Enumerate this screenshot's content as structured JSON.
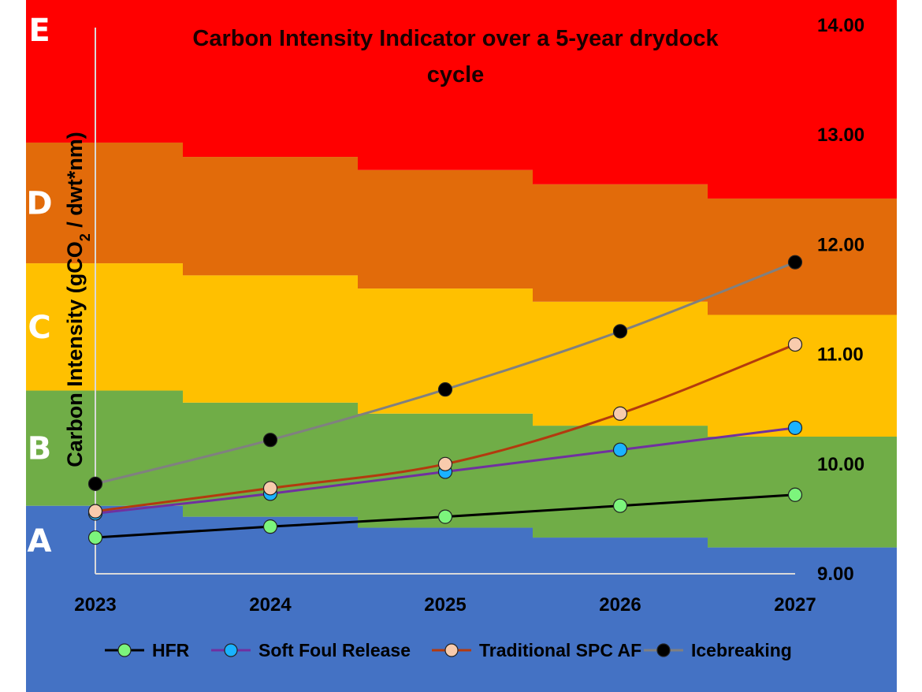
{
  "chart_data": {
    "type": "line",
    "title": "Carbon Intensity Indicator over a 5-year drydock cycle",
    "ylabel": "Carbon Intensity (gCO2 / dwt*nm)",
    "ylabel_parts": {
      "pre": "Carbon Intensity (gCO",
      "sub": "2",
      "post": " / dwt*nm)"
    },
    "xlabel": "",
    "x": [
      "2023",
      "2024",
      "2025",
      "2026",
      "2027"
    ],
    "ylim": [
      9,
      14
    ],
    "y_ticks": [
      "9.00",
      "10.00",
      "11.00",
      "12.00",
      "13.00",
      "14.00"
    ],
    "rating_bands": {
      "labels": [
        "A",
        "B",
        "C",
        "D",
        "E"
      ],
      "colors": [
        "#4472c4",
        "#70ad47",
        "#ffc000",
        "#e26b0a",
        "#ff0000"
      ],
      "upper_bounds": [
        [
          9.62,
          10.67,
          11.83,
          12.93
        ],
        [
          9.52,
          10.56,
          11.72,
          12.8
        ],
        [
          9.42,
          10.46,
          11.6,
          12.68
        ],
        [
          9.33,
          10.35,
          11.48,
          12.55
        ],
        [
          9.24,
          10.25,
          11.36,
          12.42
        ]
      ]
    },
    "series": [
      {
        "name": "HFR",
        "line_color": "#000000",
        "marker_color": "#7cf57c",
        "values": [
          9.33,
          9.43,
          9.52,
          9.62,
          9.72
        ]
      },
      {
        "name": "Soft Foul Release",
        "line_color": "#7030a0",
        "marker_color": "#1ab2ff",
        "values": [
          9.55,
          9.73,
          9.93,
          10.13,
          10.33
        ]
      },
      {
        "name": "Traditional SPC AF",
        "line_color": "#b33a0e",
        "marker_color": "#f8cbad",
        "values": [
          9.57,
          9.78,
          10.0,
          10.46,
          11.09
        ]
      },
      {
        "name": "Icebreaking",
        "line_color": "#808080",
        "marker_color": "#000000",
        "values": [
          9.82,
          10.22,
          10.68,
          11.21,
          11.84
        ]
      }
    ],
    "legend_position": "bottom"
  }
}
